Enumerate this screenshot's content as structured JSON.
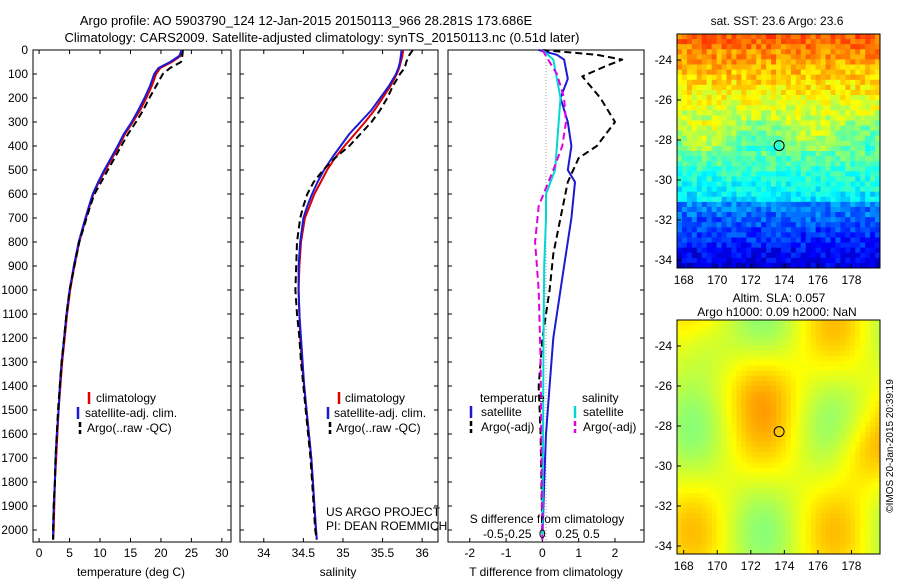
{
  "header": {
    "line1": "Argo profile: AO 5903790_124 12-Jan-2015 20150113_966 28.281S 173.686E",
    "line2": "Climatology: CARS2009. Satellite-adjusted climatology: synTS_20150113.nc (0.51d later)"
  },
  "colors": {
    "climatology": "#dd0000",
    "satellite": "#1a1ad4",
    "argo": "#000000",
    "sat_salinity": "#00d8d8",
    "argo_salinity": "#e000e0"
  },
  "depth_axis": {
    "min": 0,
    "max": 2050,
    "ticks": [
      0,
      100,
      200,
      300,
      400,
      500,
      600,
      700,
      800,
      900,
      1000,
      1100,
      1200,
      1300,
      1400,
      1500,
      1600,
      1700,
      1800,
      1900,
      2000
    ]
  },
  "temperature_panel": {
    "xlabel": "temperature (deg C)",
    "xlim": [
      -1,
      31.5
    ],
    "xticks": [
      0,
      5,
      10,
      15,
      20,
      25,
      30
    ],
    "legend": [
      "climatology",
      "satellite-adj. clim.",
      "Argo(..raw -QC)"
    ]
  },
  "salinity_panel": {
    "xlabel": "salinity",
    "xlim": [
      33.7,
      36.2
    ],
    "xticks": [
      34,
      34.5,
      35,
      35.5,
      36
    ],
    "xtick_labels": [
      "34",
      "34.5",
      "35",
      "35.5",
      "36"
    ],
    "legend": [
      "climatology",
      "satellite-adj. clim.",
      "Argo(..raw -QC)"
    ],
    "note1": "US ARGO PROJECT",
    "note2": "PI: DEAN ROEMMICH"
  },
  "difference_panel": {
    "xlabel": "T difference from climatology",
    "xlim": [
      -2.6,
      2.8
    ],
    "xticks": [
      -2,
      -1,
      0,
      1,
      2
    ],
    "s_label": "S difference from climatology",
    "s_ticks": [
      -0.5,
      -0.25,
      0,
      0.25,
      0.5
    ],
    "s_tick_labels": [
      "-0.5",
      "-0.25",
      "0",
      "0.25",
      "0.5"
    ],
    "legend_temperature_title": "temperature",
    "legend_salinity_title": "salinity",
    "legend_temperature": [
      "satellite",
      "Argo(-adj)"
    ],
    "legend_salinity": [
      "satellite",
      "Argo(-adj)"
    ]
  },
  "map_sst": {
    "title": "sat. SST: 23.6  Argo: 23.6",
    "lon_ticks": [
      168,
      170,
      172,
      174,
      176,
      178
    ],
    "lat_ticks": [
      -24,
      -26,
      -28,
      -30,
      -32,
      -34
    ],
    "lat_tick_labels": [
      "-24",
      "-26",
      "-28",
      "-30",
      "-32",
      "-34"
    ],
    "lon_range": [
      167.6,
      179.7
    ],
    "lat_range": [
      -34.4,
      -22.7
    ],
    "float_position": {
      "lon": 173.686,
      "lat": -28.281
    }
  },
  "map_sla": {
    "title1": "Altim. SLA: 0.057",
    "title2": "Argo h1000: 0.09 h2000: NaN",
    "lon_ticks": [
      168,
      170,
      172,
      174,
      176,
      178
    ],
    "lat_ticks": [
      -24,
      -26,
      -28,
      -30,
      -32,
      -34
    ],
    "lat_tick_labels": [
      "-24",
      "-26",
      "-28",
      "-30",
      "-32",
      "-34"
    ],
    "lon_range": [
      167.6,
      179.7
    ],
    "lat_range": [
      -34.4,
      -22.7
    ],
    "float_position": {
      "lon": 173.686,
      "lat": -28.281
    }
  },
  "credit": "©IMOS 20-Jan-2015 20:39:19",
  "chart_data": [
    {
      "type": "line",
      "title": "",
      "xlabel": "temperature (deg C)",
      "ylabel": "",
      "xlim": [
        -1,
        31.5
      ],
      "ylim": [
        2050,
        0
      ],
      "y": [
        0,
        25,
        50,
        75,
        100,
        150,
        200,
        250,
        300,
        350,
        400,
        450,
        500,
        550,
        600,
        650,
        700,
        800,
        900,
        1000,
        1100,
        1200,
        1300,
        1400,
        1500,
        1600,
        1700,
        1800,
        1900,
        2000,
        2040
      ],
      "series": [
        {
          "name": "climatology",
          "values": [
            23.5,
            23.2,
            21.8,
            19.9,
            19.2,
            18.5,
            17.6,
            16.6,
            15.4,
            14.1,
            13.1,
            12.0,
            10.9,
            9.8,
            8.9,
            8.3,
            7.7,
            6.6,
            5.8,
            5.1,
            4.6,
            4.2,
            3.8,
            3.5,
            3.2,
            3.0,
            2.8,
            2.6,
            2.5,
            2.4,
            2.3
          ]
        },
        {
          "name": "satellite-adj. clim.",
          "values": [
            23.4,
            23.0,
            21.5,
            19.6,
            18.9,
            18.2,
            17.3,
            16.3,
            15.2,
            13.9,
            12.9,
            11.8,
            10.7,
            9.7,
            8.8,
            8.2,
            7.6,
            6.5,
            5.7,
            5.0,
            4.5,
            4.1,
            3.7,
            3.4,
            3.2,
            2.9,
            2.7,
            2.6,
            2.4,
            2.3,
            2.3
          ]
        },
        {
          "name": "Argo(..raw -QC)",
          "values": [
            23.6,
            23.5,
            23.3,
            21.5,
            20.3,
            19.2,
            18.1,
            17.1,
            15.9,
            14.6,
            13.5,
            12.4,
            11.3,
            10.2,
            9.1,
            8.4,
            7.8,
            6.6,
            5.8,
            5.0,
            4.5,
            4.1,
            3.7,
            3.4,
            3.1,
            2.9,
            2.7,
            2.6,
            2.4,
            2.3,
            2.3
          ]
        }
      ]
    },
    {
      "type": "line",
      "title": "",
      "xlabel": "salinity",
      "ylabel": "",
      "xlim": [
        33.7,
        36.2
      ],
      "ylim": [
        2050,
        0
      ],
      "y": [
        0,
        25,
        50,
        75,
        100,
        150,
        200,
        250,
        300,
        350,
        400,
        450,
        500,
        550,
        600,
        650,
        700,
        800,
        900,
        1000,
        1100,
        1200,
        1300,
        1400,
        1500,
        1600,
        1700,
        1800,
        1900,
        2000,
        2040
      ],
      "series": [
        {
          "name": "climatology",
          "values": [
            35.76,
            35.75,
            35.73,
            35.71,
            35.68,
            35.6,
            35.5,
            35.4,
            35.28,
            35.15,
            35.02,
            34.9,
            34.8,
            34.72,
            34.64,
            34.58,
            34.52,
            34.47,
            34.45,
            34.44,
            34.45,
            34.46,
            34.48,
            34.51,
            34.54,
            34.57,
            34.6,
            34.62,
            34.64,
            34.66,
            34.67
          ]
        },
        {
          "name": "satellite-adj. clim.",
          "values": [
            35.74,
            35.73,
            35.72,
            35.7,
            35.67,
            35.58,
            35.47,
            35.36,
            35.22,
            35.08,
            34.97,
            34.86,
            34.76,
            34.68,
            34.61,
            34.55,
            34.5,
            34.46,
            34.44,
            34.44,
            34.45,
            34.47,
            34.49,
            34.51,
            34.54,
            34.57,
            34.6,
            34.62,
            34.64,
            34.66,
            34.67
          ]
        },
        {
          "name": "Argo(..raw -QC)",
          "values": [
            35.88,
            35.83,
            35.8,
            35.78,
            35.72,
            35.63,
            35.56,
            35.47,
            35.36,
            35.22,
            35.08,
            34.9,
            34.75,
            34.63,
            34.55,
            34.5,
            34.46,
            34.42,
            34.41,
            34.4,
            34.42,
            34.45,
            34.47,
            34.5,
            34.53,
            34.56,
            34.59,
            34.61,
            34.63,
            34.65,
            34.67
          ]
        }
      ]
    },
    {
      "type": "line",
      "title": "",
      "xlabel": "T difference from climatology",
      "ylabel": "",
      "xlim": [
        -2.6,
        2.8
      ],
      "ylim": [
        2050,
        0
      ],
      "series": [
        {
          "name": "temperature satellite",
          "x": [
            -0.1,
            0.4,
            0.6,
            0.7,
            0.5,
            0.7,
            0.8,
            0.7,
            0.9,
            0.8,
            0.6,
            0.5,
            0.4,
            0.3,
            0.2,
            0.1,
            0.05,
            0.0
          ],
          "y": [
            0,
            20,
            40,
            120,
            200,
            300,
            400,
            500,
            550,
            700,
            900,
            1000,
            1100,
            1200,
            1400,
            1600,
            1800,
            2040
          ]
        },
        {
          "name": "temperature Argo(-adj)",
          "x": [
            0.0,
            1.5,
            2.2,
            1.7,
            1.1,
            1.6,
            2.0,
            1.5,
            1.0,
            0.7,
            0.5,
            0.3,
            0.2,
            0.0,
            -0.1,
            -0.05,
            0.0
          ],
          "y": [
            0,
            20,
            40,
            70,
            110,
            200,
            300,
            400,
            450,
            550,
            700,
            850,
            1000,
            1200,
            1400,
            1600,
            2040
          ]
        },
        {
          "name": "salinity satellite",
          "x": [
            0.0,
            0.3,
            0.35,
            0.5,
            0.45,
            0.4,
            0.35,
            0.1,
            0.1,
            0.05,
            0.03,
            0.02,
            0.0
          ],
          "y": [
            0,
            40,
            80,
            200,
            300,
            400,
            500,
            600,
            700,
            900,
            1200,
            1600,
            2040
          ]
        },
        {
          "name": "salinity Argo(-adj)",
          "x": [
            0.0,
            0.2,
            0.4,
            0.6,
            0.65,
            0.55,
            0.3,
            -0.1,
            -0.2,
            -0.1,
            -0.05,
            0.0
          ],
          "y": [
            0,
            50,
            100,
            200,
            300,
            400,
            500,
            650,
            800,
            1000,
            1300,
            2040
          ]
        }
      ]
    }
  ]
}
